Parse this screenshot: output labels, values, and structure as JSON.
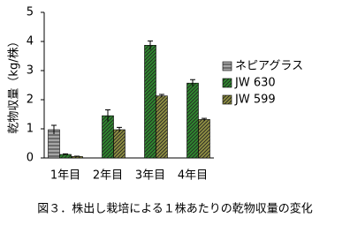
{
  "chart_data": {
    "type": "bar",
    "y_label": "乾物収量（kg/株）",
    "caption": "図３．株出し栽培による１株あたりの乾物収量の変化",
    "categories": [
      "1年目",
      "2年目",
      "3年目",
      "4年目"
    ],
    "series": [
      {
        "name": "ネピアグラス",
        "color": "#a6a6a6",
        "hatch": "horizontal",
        "values": [
          0.97,
          null,
          null,
          null
        ],
        "errors": [
          0.15,
          null,
          null,
          null
        ]
      },
      {
        "name": "JW 630",
        "color": "#2f8a2f",
        "hatch": "diagonal",
        "values": [
          0.12,
          1.45,
          3.87,
          2.57
        ],
        "errors": [
          0.02,
          0.2,
          0.15,
          0.12
        ]
      },
      {
        "name": "JW 599",
        "color": "#8f8f42",
        "hatch": "diagonal",
        "values": [
          0.05,
          0.97,
          2.13,
          1.32
        ],
        "errors": [
          0.01,
          0.08,
          0.05,
          0.04
        ]
      }
    ],
    "ylim": [
      0,
      5
    ],
    "yticks": [
      0,
      1,
      2,
      3,
      4,
      5
    ],
    "grid": false
  }
}
